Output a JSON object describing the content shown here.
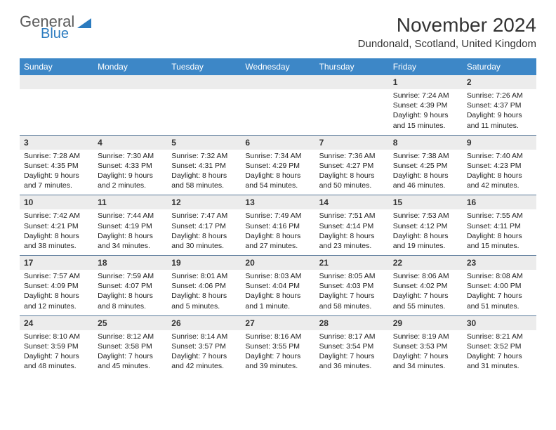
{
  "brand": {
    "line1": "General",
    "line2": "Blue",
    "shape_color": "#2b7bbf",
    "text_gray": "#5a5a5a"
  },
  "title": "November 2024",
  "location": "Dundonald, Scotland, United Kingdom",
  "colors": {
    "header_bg": "#3d87c7",
    "header_text": "#ffffff",
    "daynum_bg": "#ececec",
    "border": "#5a7a9a",
    "body_text": "#222222"
  },
  "day_names": [
    "Sunday",
    "Monday",
    "Tuesday",
    "Wednesday",
    "Thursday",
    "Friday",
    "Saturday"
  ],
  "weeks": [
    [
      null,
      null,
      null,
      null,
      null,
      {
        "n": "1",
        "sr": "7:24 AM",
        "ss": "4:39 PM",
        "dl": "9 hours and 15 minutes."
      },
      {
        "n": "2",
        "sr": "7:26 AM",
        "ss": "4:37 PM",
        "dl": "9 hours and 11 minutes."
      }
    ],
    [
      {
        "n": "3",
        "sr": "7:28 AM",
        "ss": "4:35 PM",
        "dl": "9 hours and 7 minutes."
      },
      {
        "n": "4",
        "sr": "7:30 AM",
        "ss": "4:33 PM",
        "dl": "9 hours and 2 minutes."
      },
      {
        "n": "5",
        "sr": "7:32 AM",
        "ss": "4:31 PM",
        "dl": "8 hours and 58 minutes."
      },
      {
        "n": "6",
        "sr": "7:34 AM",
        "ss": "4:29 PM",
        "dl": "8 hours and 54 minutes."
      },
      {
        "n": "7",
        "sr": "7:36 AM",
        "ss": "4:27 PM",
        "dl": "8 hours and 50 minutes."
      },
      {
        "n": "8",
        "sr": "7:38 AM",
        "ss": "4:25 PM",
        "dl": "8 hours and 46 minutes."
      },
      {
        "n": "9",
        "sr": "7:40 AM",
        "ss": "4:23 PM",
        "dl": "8 hours and 42 minutes."
      }
    ],
    [
      {
        "n": "10",
        "sr": "7:42 AM",
        "ss": "4:21 PM",
        "dl": "8 hours and 38 minutes."
      },
      {
        "n": "11",
        "sr": "7:44 AM",
        "ss": "4:19 PM",
        "dl": "8 hours and 34 minutes."
      },
      {
        "n": "12",
        "sr": "7:47 AM",
        "ss": "4:17 PM",
        "dl": "8 hours and 30 minutes."
      },
      {
        "n": "13",
        "sr": "7:49 AM",
        "ss": "4:16 PM",
        "dl": "8 hours and 27 minutes."
      },
      {
        "n": "14",
        "sr": "7:51 AM",
        "ss": "4:14 PM",
        "dl": "8 hours and 23 minutes."
      },
      {
        "n": "15",
        "sr": "7:53 AM",
        "ss": "4:12 PM",
        "dl": "8 hours and 19 minutes."
      },
      {
        "n": "16",
        "sr": "7:55 AM",
        "ss": "4:11 PM",
        "dl": "8 hours and 15 minutes."
      }
    ],
    [
      {
        "n": "17",
        "sr": "7:57 AM",
        "ss": "4:09 PM",
        "dl": "8 hours and 12 minutes."
      },
      {
        "n": "18",
        "sr": "7:59 AM",
        "ss": "4:07 PM",
        "dl": "8 hours and 8 minutes."
      },
      {
        "n": "19",
        "sr": "8:01 AM",
        "ss": "4:06 PM",
        "dl": "8 hours and 5 minutes."
      },
      {
        "n": "20",
        "sr": "8:03 AM",
        "ss": "4:04 PM",
        "dl": "8 hours and 1 minute."
      },
      {
        "n": "21",
        "sr": "8:05 AM",
        "ss": "4:03 PM",
        "dl": "7 hours and 58 minutes."
      },
      {
        "n": "22",
        "sr": "8:06 AM",
        "ss": "4:02 PM",
        "dl": "7 hours and 55 minutes."
      },
      {
        "n": "23",
        "sr": "8:08 AM",
        "ss": "4:00 PM",
        "dl": "7 hours and 51 minutes."
      }
    ],
    [
      {
        "n": "24",
        "sr": "8:10 AM",
        "ss": "3:59 PM",
        "dl": "7 hours and 48 minutes."
      },
      {
        "n": "25",
        "sr": "8:12 AM",
        "ss": "3:58 PM",
        "dl": "7 hours and 45 minutes."
      },
      {
        "n": "26",
        "sr": "8:14 AM",
        "ss": "3:57 PM",
        "dl": "7 hours and 42 minutes."
      },
      {
        "n": "27",
        "sr": "8:16 AM",
        "ss": "3:55 PM",
        "dl": "7 hours and 39 minutes."
      },
      {
        "n": "28",
        "sr": "8:17 AM",
        "ss": "3:54 PM",
        "dl": "7 hours and 36 minutes."
      },
      {
        "n": "29",
        "sr": "8:19 AM",
        "ss": "3:53 PM",
        "dl": "7 hours and 34 minutes."
      },
      {
        "n": "30",
        "sr": "8:21 AM",
        "ss": "3:52 PM",
        "dl": "7 hours and 31 minutes."
      }
    ]
  ],
  "labels": {
    "sunrise": "Sunrise:",
    "sunset": "Sunset:",
    "daylight": "Daylight:"
  }
}
